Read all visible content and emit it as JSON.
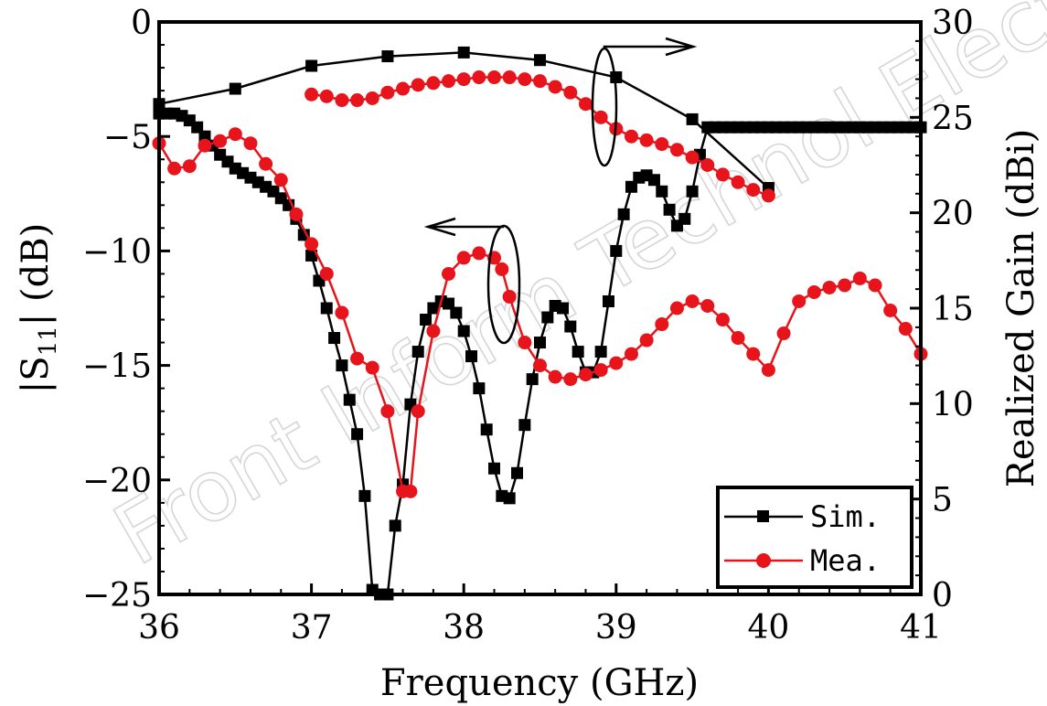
{
  "chart_data": {
    "type": "line",
    "xlabel": "Frequency (GHz)",
    "ylabel_left_main": "|S",
    "ylabel_left_sub": "11",
    "ylabel_left_tail": "| (dB)",
    "ylabel_right": "Realized Gain (dBi)",
    "xlim": [
      36,
      41
    ],
    "ylim_left": [
      -25,
      0
    ],
    "ylim_right": [
      0,
      30
    ],
    "x_ticks": [
      "36",
      "37",
      "38",
      "39",
      "40",
      "41"
    ],
    "y_left_ticks": [
      "0",
      "−5",
      "−10",
      "−15",
      "−20",
      "−25"
    ],
    "y_right_ticks": [
      "30",
      "25",
      "20",
      "15",
      "10",
      "5",
      "0"
    ],
    "legend": {
      "placement": "bottom-right",
      "entries": [
        "Sim.",
        "Mea."
      ]
    },
    "watermark": "Front Inform Technol Electron Eng",
    "colors": {
      "sim": "#000000",
      "mea": "#e8141c"
    },
    "series": [
      {
        "name": "Sim.",
        "axis": "left",
        "marker": "square",
        "x": [
          36.0,
          36.05,
          36.1,
          36.15,
          36.2,
          36.25,
          36.3,
          36.35,
          36.4,
          36.45,
          36.5,
          36.55,
          36.6,
          36.65,
          36.7,
          36.75,
          36.8,
          36.85,
          36.9,
          36.95,
          37.0,
          37.05,
          37.1,
          37.15,
          37.2,
          37.25,
          37.3,
          37.35,
          37.4,
          37.45,
          37.5,
          37.55,
          37.6,
          37.65,
          37.7,
          37.75,
          37.8,
          37.85,
          37.9,
          37.95,
          38.0,
          38.05,
          38.1,
          38.15,
          38.2,
          38.25,
          38.3,
          38.35,
          38.4,
          38.45,
          38.5,
          38.55,
          38.6,
          38.65,
          38.7,
          38.75,
          38.8,
          38.85,
          38.9,
          38.95,
          39.0,
          39.05,
          39.1,
          39.15,
          39.2,
          39.25,
          39.3,
          39.35,
          39.4,
          39.45,
          39.5,
          39.55,
          39.6,
          39.65,
          39.7,
          39.75,
          39.8,
          39.85,
          39.9,
          39.95,
          40.0,
          40.05,
          40.1,
          40.15,
          40.2,
          40.25,
          40.3,
          40.35,
          40.4,
          40.45,
          40.5,
          40.55,
          40.6,
          40.65,
          40.7,
          40.75,
          40.8,
          40.85,
          40.9,
          40.95,
          41.0
        ],
        "values": [
          -4.0,
          -4.0,
          -4.0,
          -4.1,
          -4.3,
          -4.6,
          -5.0,
          -5.4,
          -5.8,
          -6.1,
          -6.4,
          -6.6,
          -6.8,
          -7.0,
          -7.2,
          -7.4,
          -7.7,
          -8.0,
          -8.6,
          -9.3,
          -10.2,
          -11.3,
          -12.5,
          -13.8,
          -15.0,
          -16.5,
          -18.0,
          -20.7,
          -24.8,
          -25.0,
          -25.0,
          -22.0,
          -20.2,
          -16.7,
          -14.4,
          -13.0,
          -12.5,
          -12.2,
          -12.3,
          -12.7,
          -13.5,
          -14.6,
          -16.0,
          -17.8,
          -19.5,
          -20.7,
          -20.8,
          -19.7,
          -17.6,
          -15.6,
          -14.0,
          -12.9,
          -12.4,
          -12.5,
          -13.3,
          -14.4,
          -15.3,
          -15.3,
          -14.4,
          -12.2,
          -10.0,
          -8.4,
          -7.2,
          -6.8,
          -6.7,
          -6.9,
          -7.4,
          -8.2,
          -8.9,
          -8.6,
          -7.4,
          -5.8,
          -4.6,
          -4.6,
          -4.6,
          -4.6,
          -4.6,
          -4.6,
          -4.6,
          -4.6,
          -4.6,
          -4.6,
          -4.6,
          -4.6,
          -4.6,
          -4.6,
          -4.6,
          -4.6,
          -4.6,
          -4.6,
          -4.6,
          -4.6,
          -4.6,
          -4.6,
          -4.6,
          -4.6,
          -4.6,
          -4.6,
          -4.6,
          -4.6,
          -4.6
        ]
      },
      {
        "name": "Mea.",
        "axis": "left",
        "marker": "circle",
        "x": [
          36.0,
          36.1,
          36.2,
          36.3,
          36.4,
          36.5,
          36.6,
          36.7,
          36.8,
          36.9,
          37.0,
          37.1,
          37.2,
          37.3,
          37.4,
          37.5,
          37.6,
          37.65,
          37.7,
          37.8,
          37.9,
          38.0,
          38.1,
          38.2,
          38.25,
          38.3,
          38.4,
          38.5,
          38.6,
          38.7,
          38.8,
          38.9,
          39.0,
          39.1,
          39.2,
          39.3,
          39.4,
          39.5,
          39.6,
          39.7,
          39.8,
          39.9,
          40.0,
          40.1,
          40.2,
          40.3,
          40.4,
          40.5,
          40.6,
          40.7,
          40.8,
          40.9,
          41.0
        ],
        "values": [
          -5.3,
          -6.4,
          -6.3,
          -5.4,
          -5.2,
          -4.9,
          -5.3,
          -6.2,
          -6.9,
          -8.4,
          -9.7,
          -11.0,
          -12.7,
          -14.7,
          -15.1,
          -17.0,
          -20.5,
          -20.5,
          -17.0,
          -13.5,
          -11.0,
          -10.3,
          -10.1,
          -10.3,
          -10.8,
          -12.0,
          -14.0,
          -15.0,
          -15.5,
          -15.6,
          -15.4,
          -15.2,
          -14.9,
          -14.5,
          -13.9,
          -13.2,
          -12.5,
          -12.2,
          -12.4,
          -13.0,
          -13.8,
          -14.5,
          -15.2,
          -13.6,
          -12.2,
          -11.8,
          -11.6,
          -11.5,
          -11.2,
          -11.5,
          -12.6,
          -13.4,
          -14.5
        ]
      },
      {
        "name": "",
        "axis": "right",
        "marker": "square",
        "x": [
          36.0,
          36.5,
          37.0,
          37.5,
          38.0,
          38.5,
          39.0,
          39.5,
          40.0
        ],
        "values": [
          25.7,
          26.5,
          27.7,
          28.2,
          28.4,
          28.0,
          27.1,
          24.9,
          21.3
        ]
      },
      {
        "name": "",
        "axis": "right",
        "marker": "circle",
        "x": [
          37.0,
          37.1,
          37.2,
          37.3,
          37.4,
          37.5,
          37.6,
          37.7,
          37.8,
          37.9,
          38.0,
          38.1,
          38.2,
          38.3,
          38.4,
          38.5,
          38.6,
          38.7,
          38.8,
          38.9,
          39.0,
          39.1,
          39.2,
          39.3,
          39.4,
          39.5,
          39.6,
          39.7,
          39.8,
          39.9,
          40.0
        ],
        "values": [
          26.2,
          26.1,
          25.9,
          25.9,
          26.0,
          26.3,
          26.5,
          26.7,
          26.8,
          26.9,
          27.0,
          27.1,
          27.1,
          27.1,
          27.0,
          26.9,
          26.6,
          26.3,
          25.7,
          25.0,
          24.4,
          24.0,
          23.8,
          23.6,
          23.3,
          22.9,
          22.5,
          22.0,
          21.6,
          21.2,
          20.9
        ]
      }
    ]
  }
}
